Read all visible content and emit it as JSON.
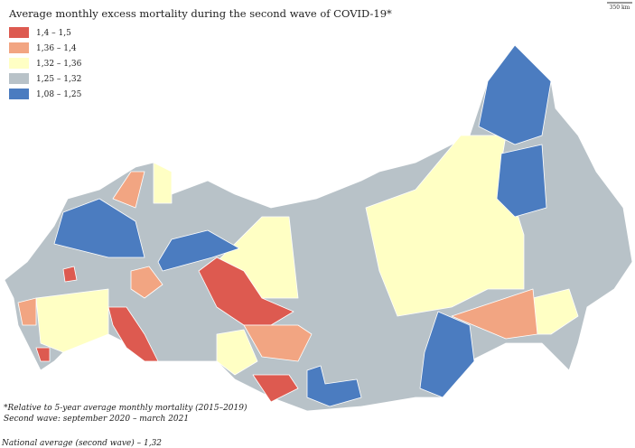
{
  "title": "Average monthly excess mortality during the second wave of COVID-19*",
  "scale": "350 km",
  "legend": [
    {
      "label": "1,4 – 1,5",
      "color": "#dd5a50"
    },
    {
      "label": "1,36 – 1,4",
      "color": "#f2a582"
    },
    {
      "label": "1,32 – 1,36",
      "color": "#ffffc4"
    },
    {
      "label": "1,25 – 1,32",
      "color": "#b8c2c8"
    },
    {
      "label": "1,08 – 1,25",
      "color": "#4b7cc0"
    }
  ],
  "footnotes": [
    "*Relative to 5-year average monthly mortality (2015–2019)",
    "Second wave: september 2020 – march 2021"
  ],
  "national_average": "National average (second wave) – 1,32"
}
